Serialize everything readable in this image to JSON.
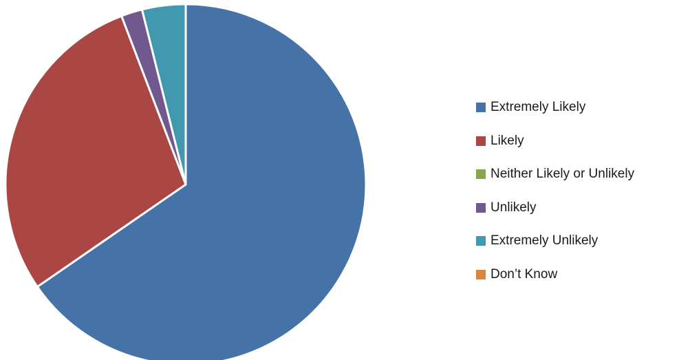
{
  "chart_data": {
    "type": "pie",
    "title": "",
    "legend_position": "right",
    "slices": [
      {
        "label": "Extremely Likely",
        "value": 65.4,
        "color": "#4572A7"
      },
      {
        "label": "Likely",
        "value": 28.8,
        "color": "#AA4643"
      },
      {
        "label": "Neither Likely or Unlikely",
        "value": 0,
        "color": "#89A54E"
      },
      {
        "label": "Unlikely",
        "value": 1.9,
        "color": "#71588F"
      },
      {
        "label": "Extremely Unlikely",
        "value": 3.9,
        "color": "#4198AF"
      },
      {
        "label": "Don’t Know",
        "value": 0,
        "color": "#DB843D"
      }
    ]
  }
}
